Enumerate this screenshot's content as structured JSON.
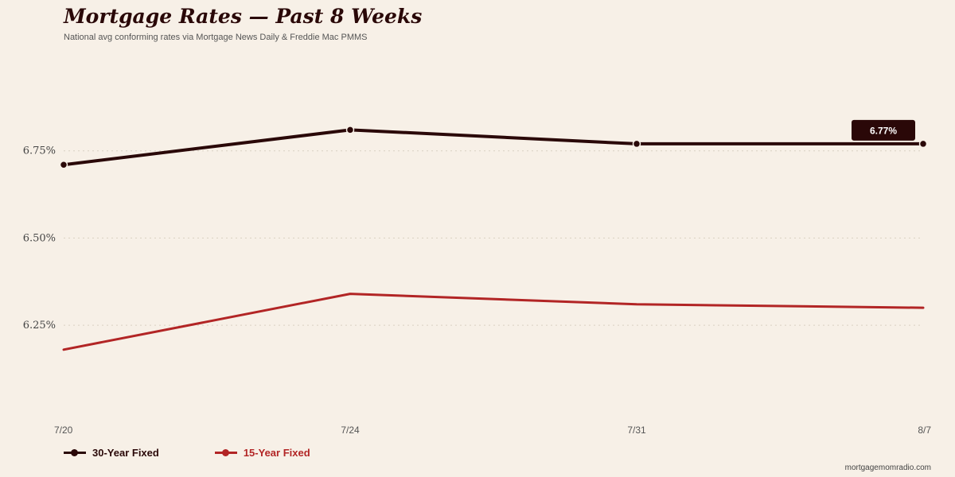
{
  "header": {
    "title": "Mortgage Rates — Past 8 Weeks",
    "subtitle": "National avg conforming rates via Mortgage News Daily & Freddie Mac PMMS"
  },
  "footer": {
    "source": "mortgagemomradio.com"
  },
  "colors": {
    "background": "#f7f0e7",
    "series_30": "#2a0808",
    "series_15": "#b22525",
    "grid": "#d9cfc2"
  },
  "chart_data": {
    "type": "line",
    "title": "Mortgage Rates — Past 8 Weeks",
    "subtitle": "National avg conforming rates via Mortgage News Daily & Freddie Mac PMMS",
    "x": [
      "7/20",
      "7/24",
      "7/31",
      "8/7"
    ],
    "y_ticks": [
      "6.25%",
      "6.50%",
      "6.75%"
    ],
    "y_tick_values": [
      6.25,
      6.5,
      6.75
    ],
    "ylim": [
      6.02,
      7.0
    ],
    "grid": true,
    "legend_position": "bottom-left",
    "series": [
      {
        "name": "30-Year Fixed",
        "values": [
          6.71,
          6.81,
          6.77,
          6.77
        ],
        "color": "#2a0808",
        "markers": true
      },
      {
        "name": "15-Year Fixed",
        "values": [
          6.18,
          6.34,
          6.31,
          6.3
        ],
        "color": "#b22525",
        "markers": false
      }
    ],
    "annotations": [
      {
        "series": 0,
        "point": 3,
        "text": "6.77%"
      }
    ]
  }
}
